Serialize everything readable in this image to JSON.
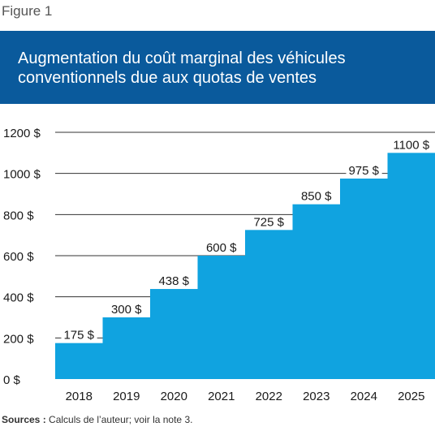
{
  "figure_label": "Figure 1",
  "sources": {
    "label": "Sources :",
    "text": " Calculs de l’auteur; voir la note 3."
  },
  "colors": {
    "banner": "#0a5a9c",
    "bar": "#10a3e0",
    "gridline": "#333333"
  },
  "chart_data": {
    "type": "area",
    "title": "Augmentation du coût marginal des véhicules conventionnels due aux quotas de ventes",
    "subtitle": "",
    "xlabel": "",
    "ylabel": "",
    "categories": [
      "2018",
      "2019",
      "2020",
      "2021",
      "2022",
      "2023",
      "2024",
      "2025"
    ],
    "values": [
      175,
      300,
      438,
      600,
      725,
      850,
      975,
      1100
    ],
    "data_labels": [
      "175 $",
      "300 $",
      "438 $",
      "600 $",
      "725 $",
      "850 $",
      "975 $",
      "1100 $"
    ],
    "ylim": [
      0,
      1200
    ],
    "yticks": [
      0,
      200,
      400,
      600,
      800,
      1000,
      1200
    ],
    "ytick_labels": [
      "0 $",
      "200 $",
      "400 $",
      "600 $",
      "800 $",
      "1000 $",
      "1200 $"
    ],
    "grid": true,
    "legend": "none",
    "style": "step"
  }
}
